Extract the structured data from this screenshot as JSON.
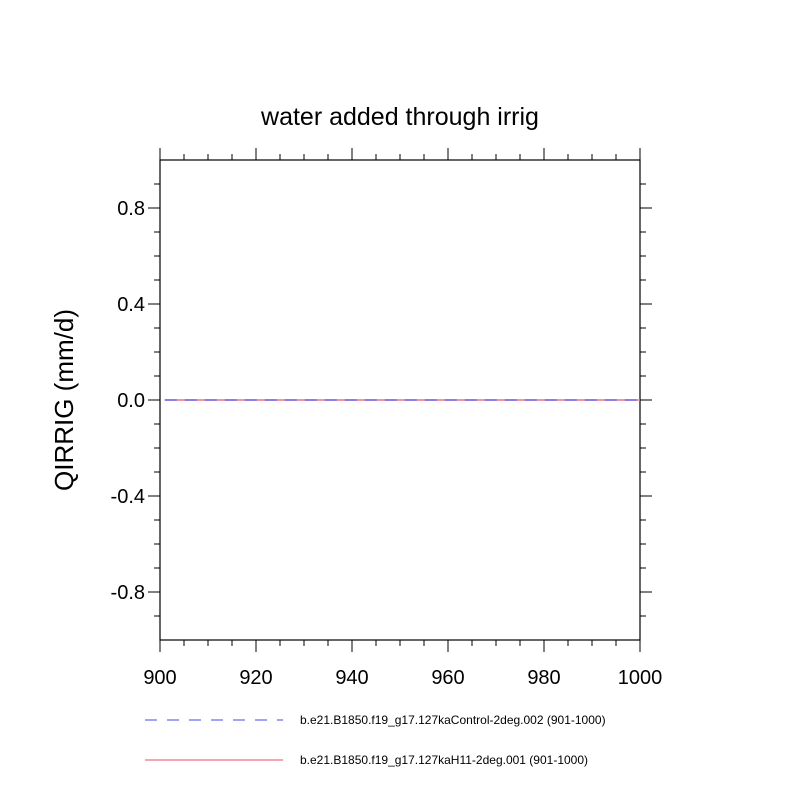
{
  "chart_data": {
    "type": "line",
    "title": "water added through irrig",
    "xlabel": "",
    "ylabel": "QIRRIG  (mm/d)",
    "xlim": [
      900,
      1000
    ],
    "ylim": [
      -1.0,
      1.0
    ],
    "x_ticks": [
      900,
      920,
      940,
      960,
      980,
      1000
    ],
    "x_tick_labels": [
      "900",
      "920",
      "940",
      "960",
      "980",
      "1000"
    ],
    "y_ticks": [
      -0.8,
      -0.4,
      0.0,
      0.4,
      0.8
    ],
    "y_tick_labels": [
      "-0.8",
      "-0.4",
      "0.0",
      "0.4",
      "0.8"
    ],
    "series": [
      {
        "name": "b.e21.B1850.f19_g17.127kaControl-2deg.002 (901-1000)",
        "color": "#6a6af0",
        "dash": "dashed",
        "x": [
          901,
          1000
        ],
        "values": [
          0.0,
          0.0
        ]
      },
      {
        "name": "b.e21.B1850.f19_g17.127kaH11-2deg.001 (901-1000)",
        "color": "#f07080",
        "dash": "solid",
        "x": [
          901,
          1000
        ],
        "values": [
          0.0,
          0.0
        ]
      }
    ],
    "legend_position": "bottom-left"
  }
}
